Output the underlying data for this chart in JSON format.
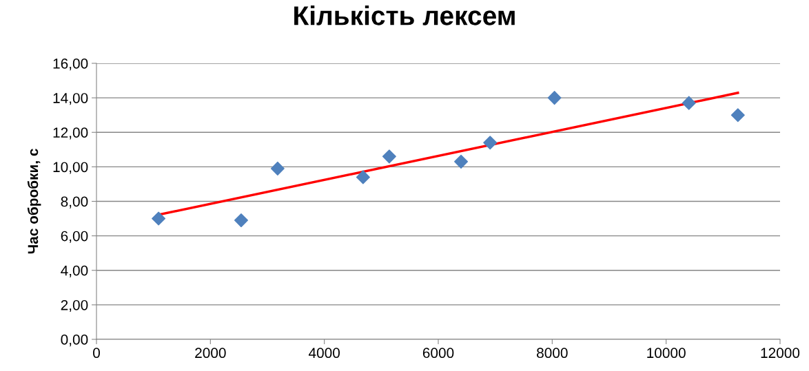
{
  "chart_data": {
    "type": "scatter",
    "title": "Кількість лексем",
    "ylabel": "Час обробки, с",
    "series": [
      {
        "color": "#4f81bd",
        "marker": "diamond",
        "x": [
          1090,
          2540,
          3180,
          4680,
          5140,
          6400,
          6910,
          8040,
          10400,
          11260
        ],
        "values": [
          7.0,
          6.9,
          9.9,
          9.4,
          10.6,
          10.3,
          11.4,
          14.0,
          13.7,
          13.0
        ]
      },
      {
        "type": "line",
        "color": "#ff0000",
        "marker": "none",
        "line_style": "solid",
        "x": [
          1090,
          11260
        ],
        "values": [
          7.22,
          14.29
        ]
      }
    ],
    "xlim": [
      0,
      12000
    ],
    "xticks": [
      0,
      2000,
      4000,
      6000,
      8000,
      10000,
      12000
    ],
    "ylim": [
      0,
      16
    ],
    "yticks": [
      {
        "value": 0,
        "label": "0,00"
      },
      {
        "value": 2,
        "label": "2,00"
      },
      {
        "value": 4,
        "label": "4,00"
      },
      {
        "value": 6,
        "label": "6,00"
      },
      {
        "value": 8,
        "label": "8,00"
      },
      {
        "value": 10,
        "label": "10,00"
      },
      {
        "value": 12,
        "label": "12,00"
      },
      {
        "value": 14,
        "label": "14,00"
      },
      {
        "value": 16,
        "label": "16,00"
      }
    ],
    "grid": "y"
  }
}
